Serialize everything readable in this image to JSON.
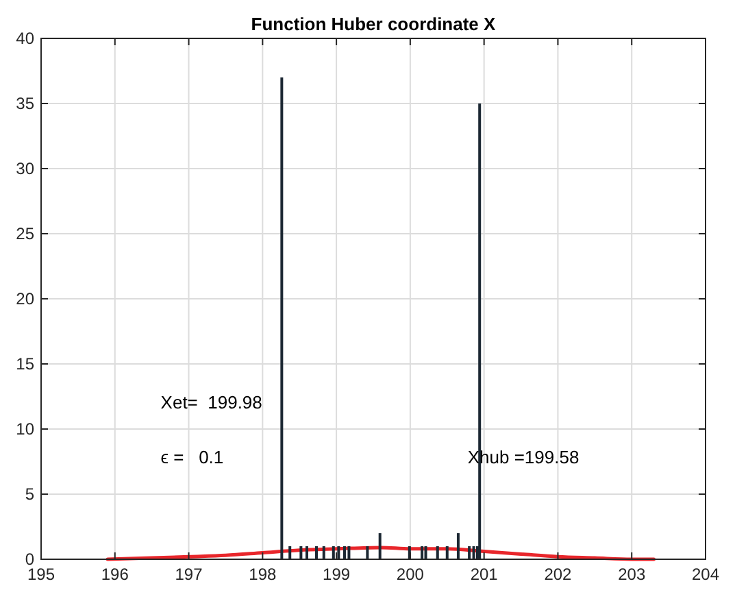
{
  "chart_data": {
    "type": "bar",
    "title": "Function Huber coordinate X",
    "xlim": [
      195,
      204
    ],
    "xticks": [
      195,
      196,
      197,
      198,
      199,
      200,
      201,
      202,
      203,
      204
    ],
    "ylim": [
      0,
      40
    ],
    "yticks": [
      0,
      5,
      10,
      15,
      20,
      25,
      30,
      35,
      40
    ],
    "grid": true,
    "series": [
      {
        "color": "#1c2833",
        "x": [
          198.26,
          198.37,
          198.52,
          198.6,
          198.73,
          198.83,
          198.96,
          199.03,
          199.11,
          199.17,
          199.42,
          199.59,
          199.99,
          200.16,
          200.21,
          200.37,
          200.5,
          200.65,
          200.8,
          200.86,
          200.91,
          200.94
        ],
        "values": [
          37,
          1,
          1,
          1,
          1,
          1,
          1,
          1,
          1,
          1,
          1,
          2,
          1,
          1,
          1,
          1,
          1,
          2,
          1,
          1,
          1,
          35
        ]
      },
      {
        "type": "line",
        "color": "#e8262b",
        "x": [
          195.9,
          196.5,
          197,
          197.5,
          198,
          198.5,
          199,
          199.6,
          200,
          200.5,
          201,
          201.5,
          202,
          202.5,
          203,
          203.3
        ],
        "values": [
          0,
          0.1,
          0.2,
          0.3,
          0.5,
          0.7,
          0.8,
          0.9,
          0.8,
          0.8,
          0.6,
          0.4,
          0.2,
          0.1,
          0,
          0
        ]
      }
    ],
    "annotations": [
      "Xet=  199.98",
      "ϵ =   0.1",
      "Xhub =199.58"
    ]
  }
}
